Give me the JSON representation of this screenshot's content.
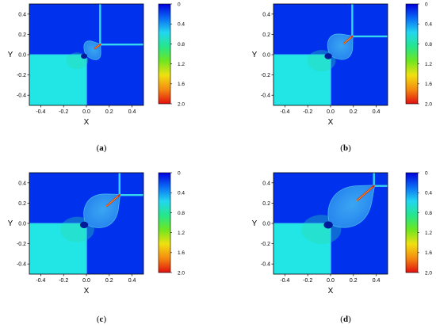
{
  "colors": {
    "high_pressure": "#0032ee",
    "low_region": "#22e6e6",
    "mid_fill": "#2a8cf0",
    "fracture_tip": "#e02010",
    "colorbar_stops": [
      "#0000dd",
      "#0a6cf5",
      "#22d7f0",
      "#25e68a",
      "#6ee620",
      "#f0e010",
      "#f58a10",
      "#e01010"
    ]
  },
  "chart_data": [
    {
      "type": "heatmap",
      "panel": "(a)",
      "xlabel": "X",
      "ylabel": "Y",
      "xlim": [
        -0.5,
        0.5
      ],
      "ylim": [
        -0.5,
        0.5
      ],
      "xticks": [
        "-0.4",
        "-0.2",
        "0.0",
        "0.2",
        "0.4"
      ],
      "yticks": [
        "0.4",
        "0.2",
        "0.0",
        "-0.2",
        "-0.4"
      ],
      "colorbar_ticks": [
        "0",
        "0.4",
        "0.8",
        "1.2",
        "1.6",
        "2.0"
      ],
      "fracture_x": 0.12,
      "fracture_y": 0.1,
      "plume_size": 0.55
    },
    {
      "type": "heatmap",
      "panel": "(b)",
      "xlabel": "X",
      "ylabel": "Y",
      "xlim": [
        -0.5,
        0.5
      ],
      "ylim": [
        -0.5,
        0.5
      ],
      "xticks": [
        "-0.4",
        "-0.2",
        "0.0",
        "0.2",
        "0.4"
      ],
      "yticks": [
        "0.4",
        "0.2",
        "0.0",
        "-0.2",
        "-0.4"
      ],
      "colorbar_ticks": [
        "0",
        "0.4",
        "0.8",
        "1.2",
        "1.6",
        "2.0"
      ],
      "fracture_x": 0.19,
      "fracture_y": 0.18,
      "plume_size": 0.85
    },
    {
      "type": "heatmap",
      "panel": "(c)",
      "xlabel": "X",
      "ylabel": "Y",
      "xlim": [
        -0.5,
        0.5
      ],
      "ylim": [
        -0.5,
        0.5
      ],
      "xticks": [
        "-0.4",
        "-0.2",
        "0.0",
        "0.2",
        "0.4"
      ],
      "yticks": [
        "0.4",
        "0.2",
        "0.0",
        "-0.2",
        "-0.4"
      ],
      "colorbar_ticks": [
        "0",
        "0.4",
        "0.8",
        "1.2",
        "1.6",
        "2.0"
      ],
      "fracture_x": 0.29,
      "fracture_y": 0.28,
      "plume_size": 1.1
    },
    {
      "type": "heatmap",
      "panel": "(d)",
      "xlabel": "X",
      "ylabel": "Y",
      "xlim": [
        -0.5,
        0.5
      ],
      "ylim": [
        -0.5,
        0.5
      ],
      "xticks": [
        "-0.4",
        "-0.2",
        "0.0",
        "0.2",
        "0.4"
      ],
      "yticks": [
        "0.4",
        "0.2",
        "0.0",
        "-0.2",
        "-0.4"
      ],
      "colorbar_ticks": [
        "0",
        "0.4",
        "0.8",
        "1.2",
        "1.6",
        "2.0"
      ],
      "fracture_x": 0.38,
      "fracture_y": 0.37,
      "plume_size": 1.35
    }
  ]
}
